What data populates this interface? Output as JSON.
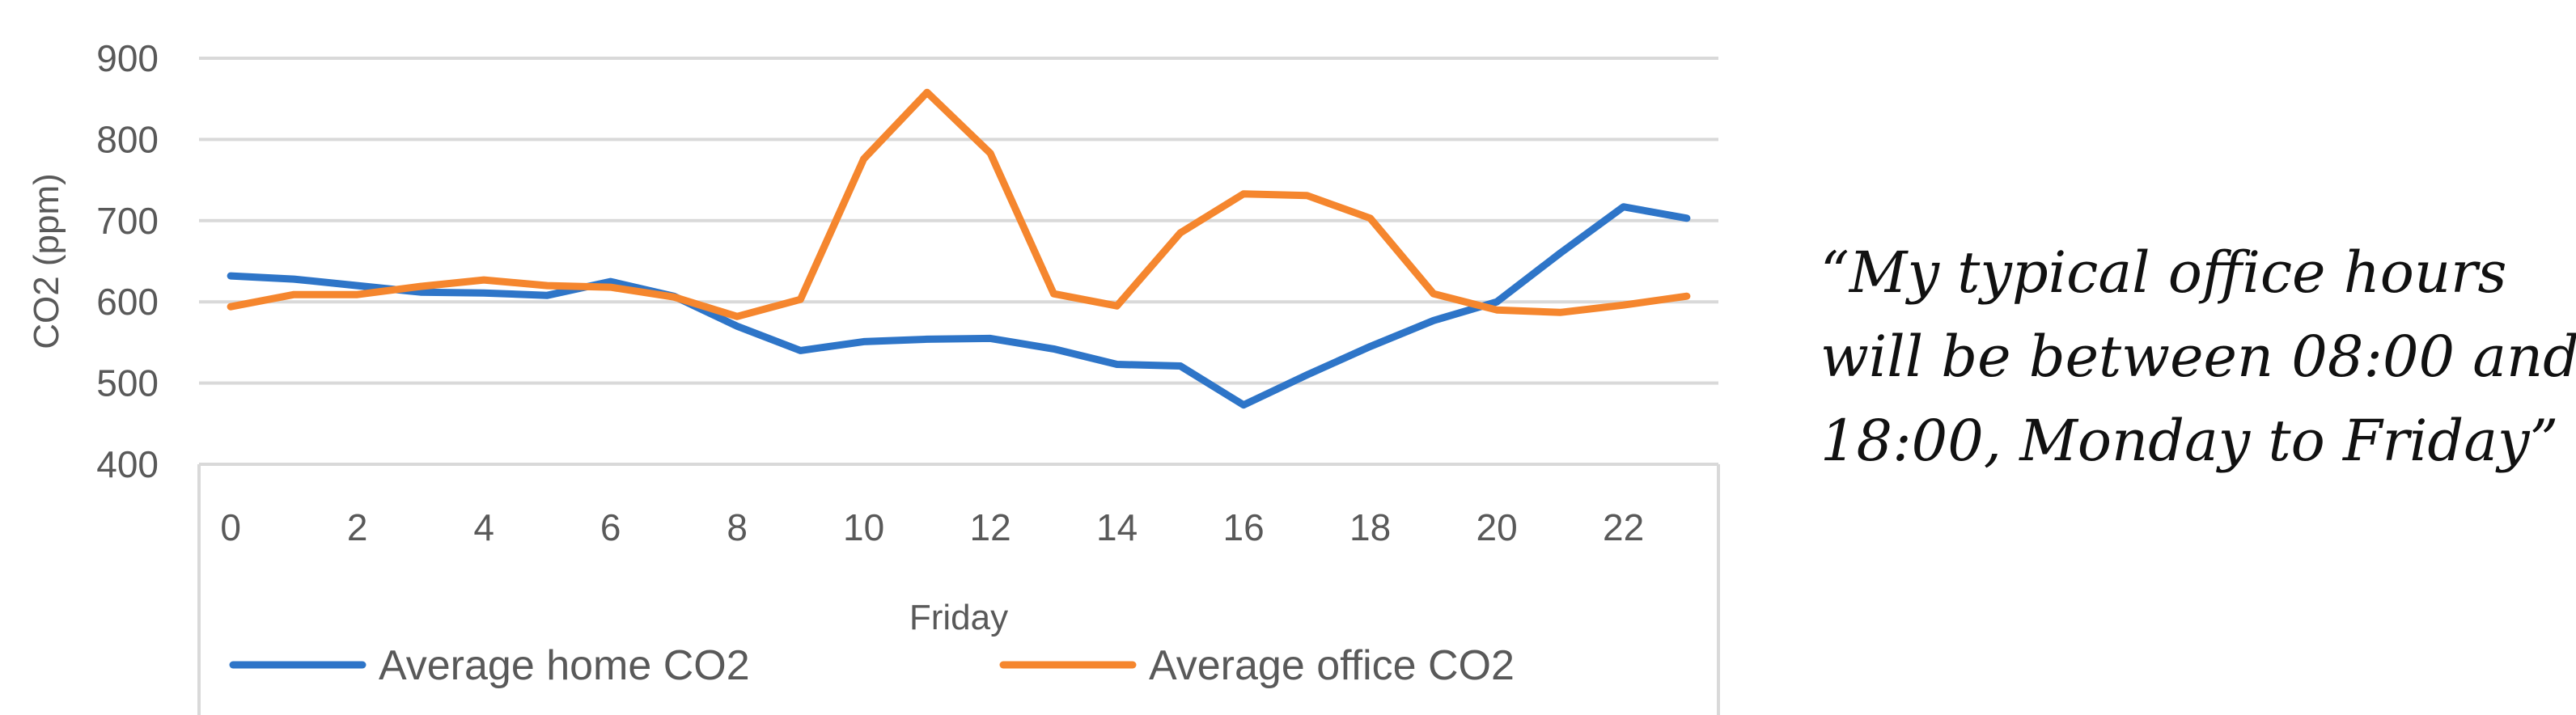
{
  "chart_data": {
    "type": "line",
    "title": "",
    "xlabel": "Friday",
    "ylabel": "CO2 (ppm)",
    "ylim": [
      400,
      900
    ],
    "yticks": [
      400,
      500,
      600,
      700,
      800,
      900
    ],
    "xlim": [
      -0.5,
      23.5
    ],
    "xticks": [
      0,
      2,
      4,
      6,
      8,
      10,
      12,
      14,
      16,
      18,
      20,
      22
    ],
    "grid": true,
    "legend_position": "bottom",
    "x": [
      0,
      1,
      2,
      3,
      4,
      5,
      6,
      7,
      8,
      9,
      10,
      11,
      12,
      13,
      14,
      15,
      16,
      17,
      18,
      19,
      20,
      21,
      22,
      23
    ],
    "series": [
      {
        "name": "Average home CO2",
        "color": "#2e75c8",
        "values": [
          632,
          628,
          620,
          612,
          611,
          608,
          625,
          607,
          570,
          540,
          551,
          554,
          555,
          542,
          523,
          521,
          473,
          510,
          545,
          577,
          600,
          660,
          717,
          703
        ]
      },
      {
        "name": "Average office CO2",
        "color": "#f5862e",
        "values": [
          594,
          609,
          609,
          619,
          627,
          620,
          618,
          606,
          582,
          603,
          776,
          858,
          783,
          610,
          595,
          685,
          733,
          731,
          703,
          610,
          590,
          587,
          596,
          607
        ]
      }
    ]
  },
  "quote": {
    "lines": [
      "“My typical office hours",
      "will be between 08:00 and",
      "18:00, Monday to Friday”"
    ]
  }
}
